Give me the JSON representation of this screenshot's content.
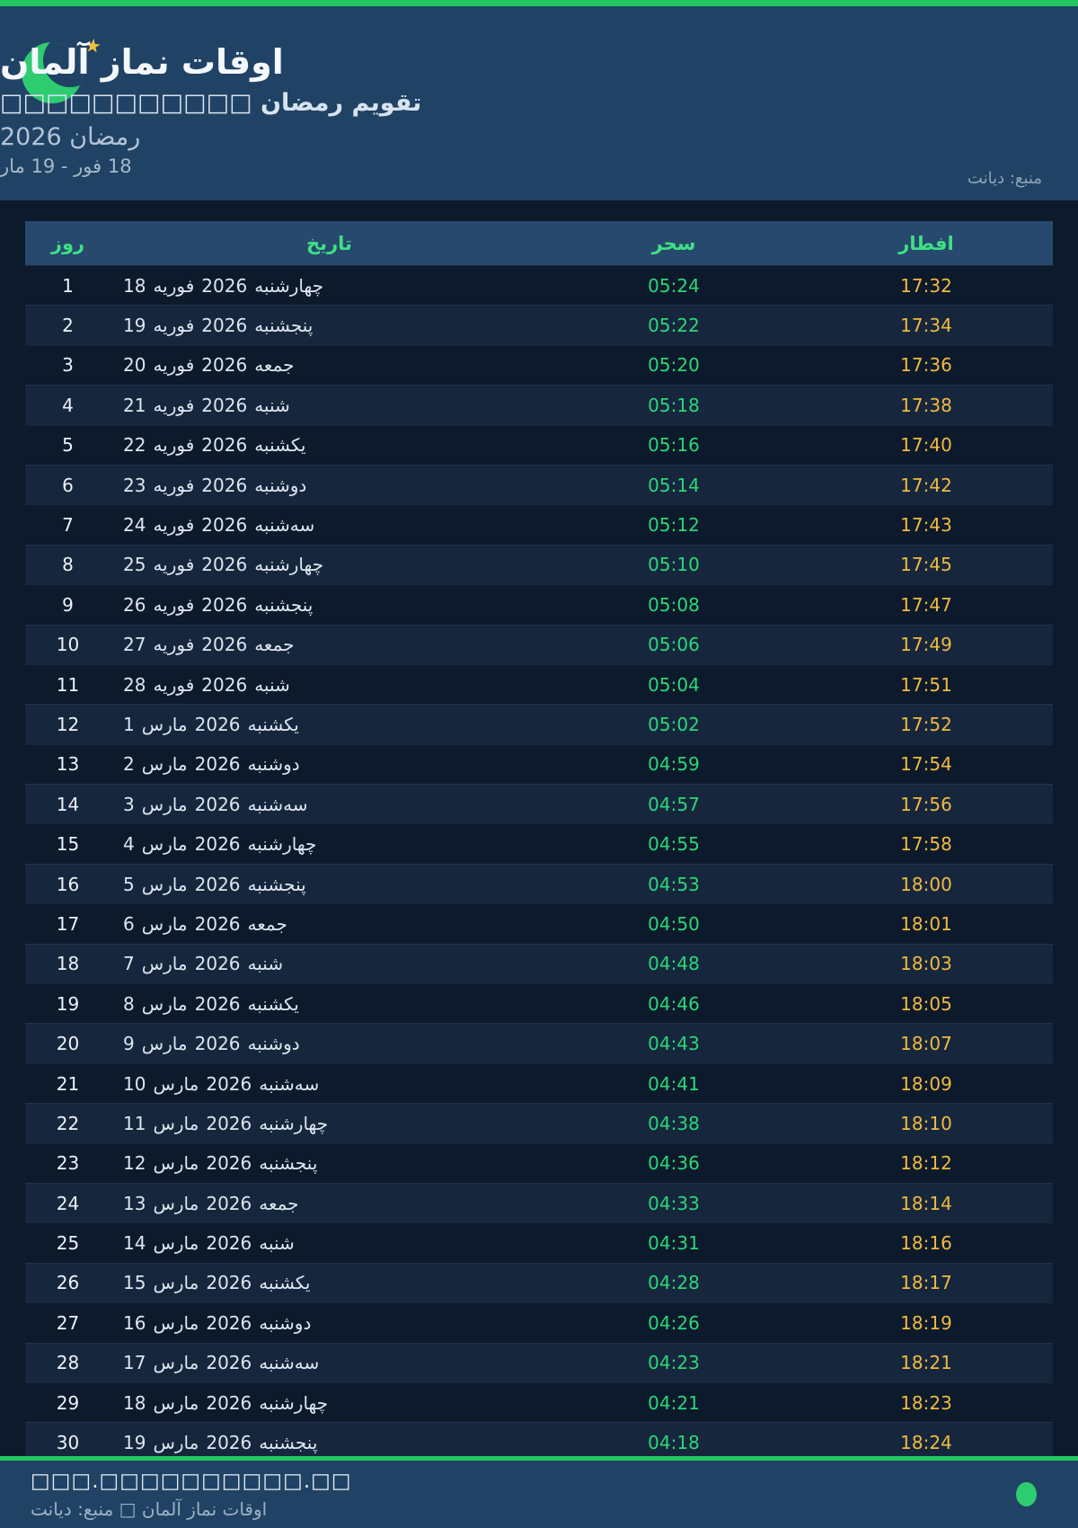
{
  "header": {
    "title": "اوقات نماز آلمان",
    "subtitle": "تقویم رمضان □□□□□□□□□□□",
    "season": "رمضان 2026",
    "range": "18 فور - 19 مار",
    "source": "منبع: دیانت",
    "moon_icon": "crescent-moon-icon",
    "star_icon": "star-icon"
  },
  "table": {
    "columns": [
      "روز",
      "تاریخ",
      "سحر",
      "افطار"
    ],
    "rows": [
      {
        "day": "1",
        "date": "18 فوریه 2026 چهارشنبه",
        "suhoor": "05:24",
        "iftar": "17:32"
      },
      {
        "day": "2",
        "date": "19 فوریه 2026 پنجشنبه",
        "suhoor": "05:22",
        "iftar": "17:34"
      },
      {
        "day": "3",
        "date": "20 فوریه 2026 جمعه",
        "suhoor": "05:20",
        "iftar": "17:36"
      },
      {
        "day": "4",
        "date": "21 فوریه 2026 شنبه",
        "suhoor": "05:18",
        "iftar": "17:38"
      },
      {
        "day": "5",
        "date": "22 فوریه 2026 یکشنبه",
        "suhoor": "05:16",
        "iftar": "17:40"
      },
      {
        "day": "6",
        "date": "23 فوریه 2026 دوشنبه",
        "suhoor": "05:14",
        "iftar": "17:42"
      },
      {
        "day": "7",
        "date": "24 فوریه 2026 سه‌شنبه",
        "suhoor": "05:12",
        "iftar": "17:43"
      },
      {
        "day": "8",
        "date": "25 فوریه 2026 چهارشنبه",
        "suhoor": "05:10",
        "iftar": "17:45"
      },
      {
        "day": "9",
        "date": "26 فوریه 2026 پنجشنبه",
        "suhoor": "05:08",
        "iftar": "17:47"
      },
      {
        "day": "10",
        "date": "27 فوریه 2026 جمعه",
        "suhoor": "05:06",
        "iftar": "17:49"
      },
      {
        "day": "11",
        "date": "28 فوریه 2026 شنبه",
        "suhoor": "05:04",
        "iftar": "17:51"
      },
      {
        "day": "12",
        "date": "1 مارس 2026 یکشنبه",
        "suhoor": "05:02",
        "iftar": "17:52"
      },
      {
        "day": "13",
        "date": "2 مارس 2026 دوشنبه",
        "suhoor": "04:59",
        "iftar": "17:54"
      },
      {
        "day": "14",
        "date": "3 مارس 2026 سه‌شنبه",
        "suhoor": "04:57",
        "iftar": "17:56"
      },
      {
        "day": "15",
        "date": "4 مارس 2026 چهارشنبه",
        "suhoor": "04:55",
        "iftar": "17:58"
      },
      {
        "day": "16",
        "date": "5 مارس 2026 پنجشنبه",
        "suhoor": "04:53",
        "iftar": "18:00"
      },
      {
        "day": "17",
        "date": "6 مارس 2026 جمعه",
        "suhoor": "04:50",
        "iftar": "18:01"
      },
      {
        "day": "18",
        "date": "7 مارس 2026 شنبه",
        "suhoor": "04:48",
        "iftar": "18:03"
      },
      {
        "day": "19",
        "date": "8 مارس 2026 یکشنبه",
        "suhoor": "04:46",
        "iftar": "18:05"
      },
      {
        "day": "20",
        "date": "9 مارس 2026 دوشنبه",
        "suhoor": "04:43",
        "iftar": "18:07"
      },
      {
        "day": "21",
        "date": "10 مارس 2026 سه‌شنبه",
        "suhoor": "04:41",
        "iftar": "18:09"
      },
      {
        "day": "22",
        "date": "11 مارس 2026 چهارشنبه",
        "suhoor": "04:38",
        "iftar": "18:10"
      },
      {
        "day": "23",
        "date": "12 مارس 2026 پنجشنبه",
        "suhoor": "04:36",
        "iftar": "18:12"
      },
      {
        "day": "24",
        "date": "13 مارس 2026 جمعه",
        "suhoor": "04:33",
        "iftar": "18:14"
      },
      {
        "day": "25",
        "date": "14 مارس 2026 شنبه",
        "suhoor": "04:31",
        "iftar": "18:16"
      },
      {
        "day": "26",
        "date": "15 مارس 2026 یکشنبه",
        "suhoor": "04:28",
        "iftar": "18:17"
      },
      {
        "day": "27",
        "date": "16 مارس 2026 دوشنبه",
        "suhoor": "04:26",
        "iftar": "18:19"
      },
      {
        "day": "28",
        "date": "17 مارس 2026 سه‌شنبه",
        "suhoor": "04:23",
        "iftar": "18:21"
      },
      {
        "day": "29",
        "date": "18 مارس 2026 چهارشنبه",
        "suhoor": "04:21",
        "iftar": "18:23"
      },
      {
        "day": "30",
        "date": "19 مارس 2026 پنجشنبه",
        "suhoor": "04:18",
        "iftar": "18:24"
      }
    ]
  },
  "footer": {
    "line1": "□□□.□□□□□□□□□□.□□",
    "line2": "اوقات نماز آلمان □ منبع: دیانت"
  },
  "colors": {
    "accent_green": "#22c55e",
    "moon_green": "#2ecc71",
    "star_gold": "#f0c23d",
    "header_bg": "#204365",
    "page_bg": "#0d1a2c",
    "table_header_bg": "#27496e",
    "table_header_text": "#3fe085",
    "row_alt_bg": "#16273d",
    "suhoor_green": "#2bd778",
    "iftar_gold": "#f1ba3e"
  }
}
